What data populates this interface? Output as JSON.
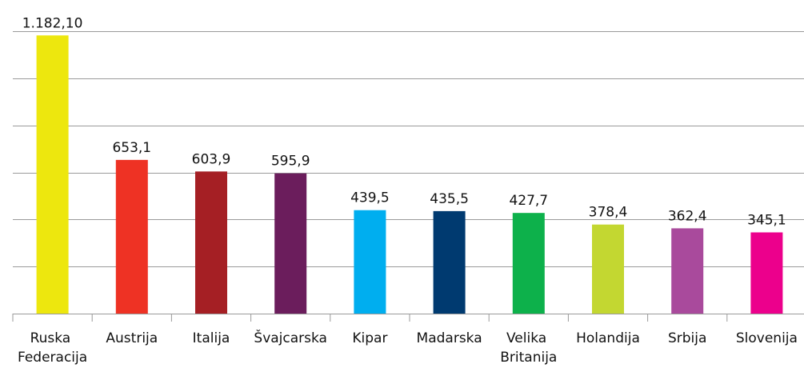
{
  "chart_data": {
    "type": "bar",
    "categories": [
      "Ruska Federacija",
      "Austrija",
      "Italija",
      "Švajcarska",
      "Kipar",
      "Madarska",
      "Velika Britanija",
      "Holandija",
      "Srbija",
      "Slovenija"
    ],
    "values": [
      1182.1,
      653.1,
      603.9,
      595.9,
      439.5,
      435.5,
      427.7,
      378.4,
      362.4,
      345.1
    ],
    "value_labels": [
      "1.182,10",
      "653,1",
      "603,9",
      "595,9",
      "439,5",
      "435,5",
      "427,7",
      "378,4",
      "362,4",
      "345,1"
    ],
    "colors": [
      "#ede70e",
      "#ee3224",
      "#a51f24",
      "#6b1d5c",
      "#00aeef",
      "#003a70",
      "#0db14b",
      "#c3d731",
      "#a94a9c",
      "#ec008c"
    ],
    "ylim": [
      0,
      1200
    ],
    "yticks": [
      0,
      200,
      400,
      600,
      800,
      1000,
      1200
    ],
    "grid": true
  }
}
